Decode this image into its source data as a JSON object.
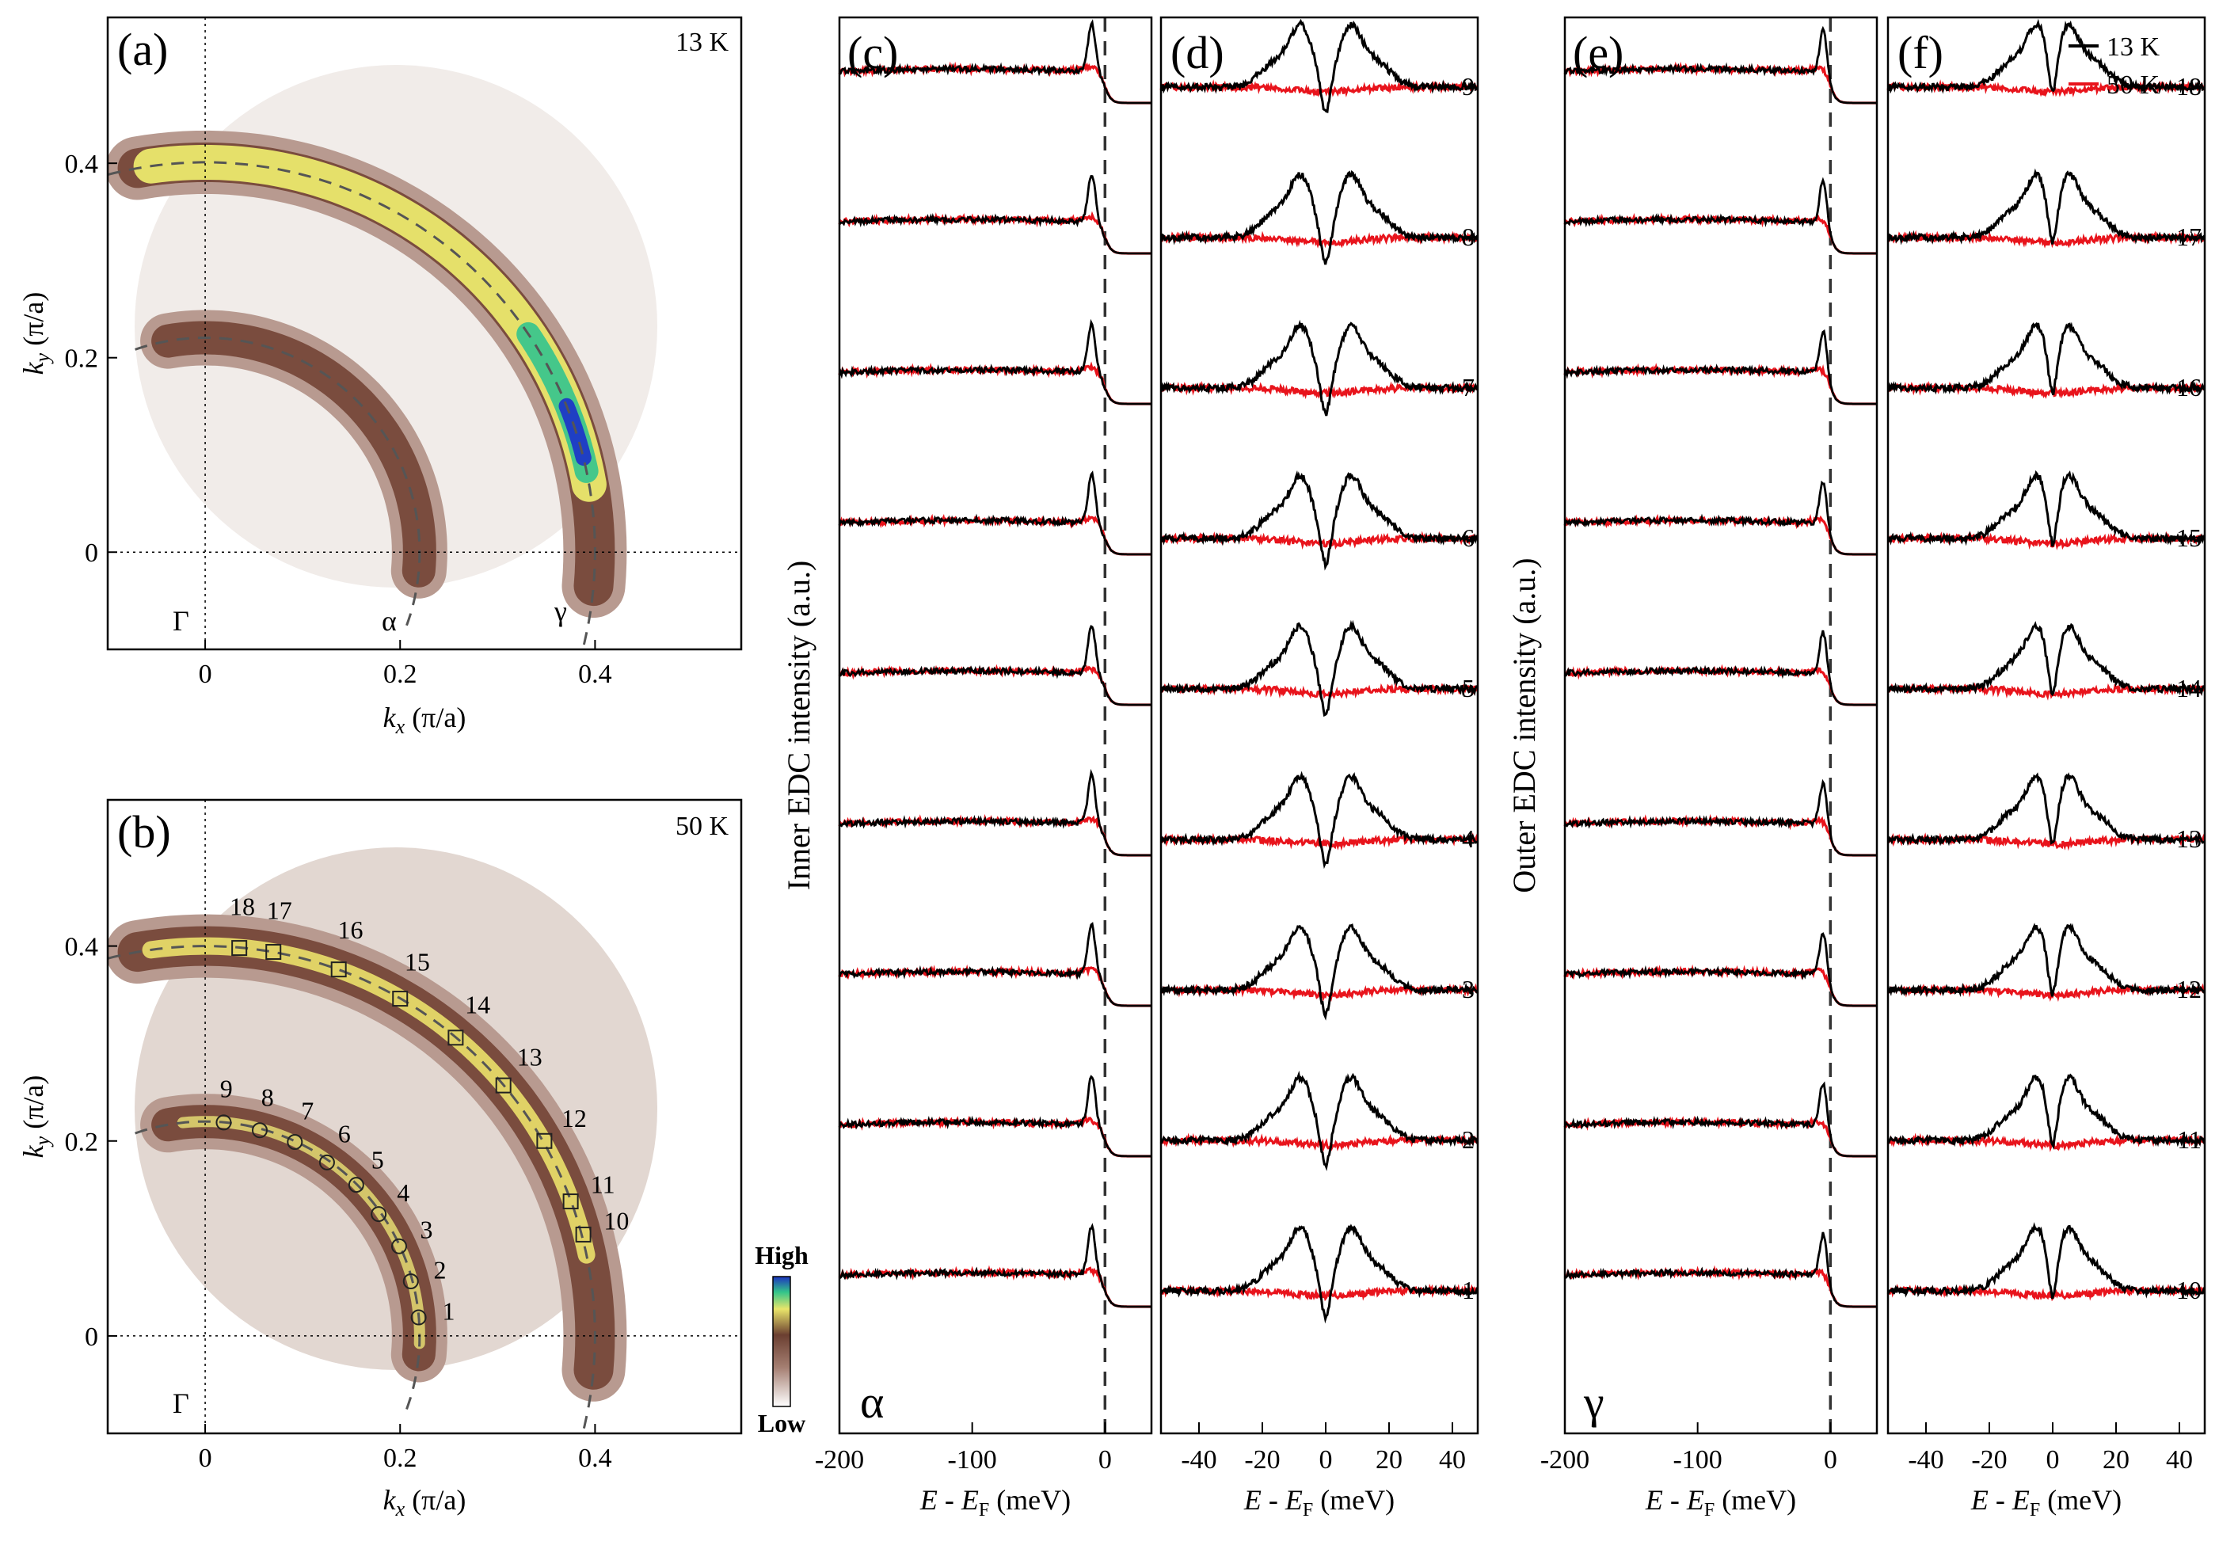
{
  "colors": {
    "k13": "#000000",
    "k50": "#e8141c",
    "dashed": "#555555"
  },
  "legend": [
    {
      "label": "13 K",
      "color": "#000000"
    },
    {
      "label": "50 K",
      "color": "#e8141c"
    }
  ],
  "panels": {
    "a": {
      "label": "(a)",
      "temp": "13 K"
    },
    "b": {
      "label": "(b)",
      "temp": "50 K"
    },
    "c": {
      "label": "(c)"
    },
    "d": {
      "label": "(d)"
    },
    "e": {
      "label": "(e)"
    },
    "f": {
      "label": "(f)"
    }
  },
  "fs_axes": {
    "xlabel_k": "k",
    "xlabel_sub": "x",
    "xlabel_unit": " (π/a)",
    "ylabel_k": "k",
    "ylabel_sub": "y",
    "ylabel_unit": " (π/a)",
    "xticks": [
      "0",
      "0.2",
      "0.4"
    ],
    "yticks": [
      "0",
      "0.2",
      "0.4"
    ],
    "gamma": "Γ",
    "alpha": "α",
    "gamma_band": "γ",
    "colorbar_high": "High",
    "colorbar_low": "Low"
  },
  "edc_axes": {
    "xlabel_E": "E",
    "xlabel_mid": " - E",
    "xlabel_sub": "F",
    "xlabel_unit": " (meV)",
    "wide_ticks": [
      "-200",
      "-100",
      "0"
    ],
    "narrow_ticks": [
      "-40",
      "-20",
      "0",
      "20",
      "40"
    ],
    "inner_ylabel": "Inner EDC intensity (a.u.)",
    "outer_ylabel": "Outer EDC intensity (a.u.)",
    "c_band": "α",
    "e_band": "γ"
  },
  "chart_data": [
    {
      "type": "heatmap",
      "panel": "a",
      "title": "13 K",
      "xlim": [
        -0.1,
        0.55
      ],
      "ylim": [
        -0.1,
        0.55
      ],
      "bands": {
        "alpha_kF": 0.22,
        "gamma_kF": 0.4
      }
    },
    {
      "type": "heatmap",
      "panel": "b",
      "title": "50 K",
      "xlim": [
        -0.1,
        0.55
      ],
      "ylim": [
        -0.1,
        0.55
      ],
      "points": [
        {
          "n": "1",
          "kx": 0.219,
          "ky": 0.019,
          "marker": "circle"
        },
        {
          "n": "2",
          "kx": 0.211,
          "ky": 0.056,
          "marker": "circle"
        },
        {
          "n": "3",
          "kx": 0.199,
          "ky": 0.092,
          "marker": "circle"
        },
        {
          "n": "4",
          "kx": 0.178,
          "ky": 0.125,
          "marker": "circle"
        },
        {
          "n": "5",
          "kx": 0.155,
          "ky": 0.155,
          "marker": "circle"
        },
        {
          "n": "6",
          "kx": 0.125,
          "ky": 0.178,
          "marker": "circle"
        },
        {
          "n": "7",
          "kx": 0.092,
          "ky": 0.199,
          "marker": "circle"
        },
        {
          "n": "8",
          "kx": 0.056,
          "ky": 0.211,
          "marker": "circle"
        },
        {
          "n": "9",
          "kx": 0.019,
          "ky": 0.219,
          "marker": "circle"
        },
        {
          "n": "10",
          "kx": 0.388,
          "ky": 0.104,
          "marker": "square"
        },
        {
          "n": "11",
          "kx": 0.375,
          "ky": 0.138,
          "marker": "square"
        },
        {
          "n": "12",
          "kx": 0.348,
          "ky": 0.2,
          "marker": "square"
        },
        {
          "n": "13",
          "kx": 0.306,
          "ky": 0.257,
          "marker": "square"
        },
        {
          "n": "14",
          "kx": 0.257,
          "ky": 0.306,
          "marker": "square"
        },
        {
          "n": "15",
          "kx": 0.2,
          "ky": 0.346,
          "marker": "square"
        },
        {
          "n": "16",
          "kx": 0.137,
          "ky": 0.376,
          "marker": "square"
        },
        {
          "n": "17",
          "kx": 0.07,
          "ky": 0.394,
          "marker": "square"
        },
        {
          "n": "18",
          "kx": 0.035,
          "ky": 0.398,
          "marker": "square"
        }
      ]
    },
    {
      "type": "line",
      "panel": "c",
      "xlim": [
        -200,
        35
      ],
      "curves": 9,
      "peak_meV": -10,
      "fermi_width_meV": 2.5
    },
    {
      "type": "line",
      "panel": "d",
      "xlim": [
        -52,
        48
      ],
      "labels": [
        "1",
        "2",
        "3",
        "4",
        "5",
        "6",
        "7",
        "8",
        "9"
      ],
      "gap_meV": 7.5
    },
    {
      "type": "line",
      "panel": "e",
      "xlim": [
        -200,
        35
      ],
      "curves": 9,
      "peak_meV": -5,
      "fermi_width_meV": 2.5
    },
    {
      "type": "line",
      "panel": "f",
      "xlim": [
        -52,
        48
      ],
      "labels": [
        "10",
        "11",
        "12",
        "13",
        "14",
        "15",
        "16",
        "17",
        "18"
      ],
      "gap_meV": 4.5
    }
  ]
}
